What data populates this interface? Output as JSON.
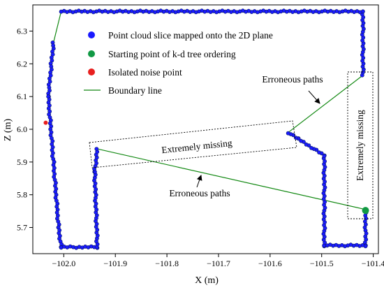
{
  "chart_data": {
    "type": "scatter",
    "xlabel": "X (m)",
    "ylabel": "Z (m)",
    "xlim": [
      -102.06,
      -101.39
    ],
    "ylim": [
      5.62,
      6.38
    ],
    "x_ticks": [
      -102.0,
      -101.9,
      -101.8,
      -101.7,
      -101.6,
      -101.5,
      -101.4
    ],
    "x_tick_labels": [
      "−102.0",
      "−101.9",
      "−101.8",
      "−101.7",
      "−101.6",
      "−101.5",
      "−101.4"
    ],
    "y_ticks": [
      5.7,
      5.8,
      5.9,
      6.0,
      6.1,
      6.2,
      6.3
    ],
    "y_tick_labels": [
      "5.7",
      "5.8",
      "5.9",
      "6.0",
      "6.1",
      "6.2",
      "6.3"
    ],
    "grid": false,
    "legend_position": "top-left",
    "legend": [
      {
        "label": "Point cloud slice mapped onto the 2D plane",
        "marker": "circle",
        "color": "#1a1aff"
      },
      {
        "label": "Starting point of k-d tree ordering",
        "marker": "circle",
        "color": "#119944"
      },
      {
        "label": "Isolated noise point",
        "marker": "circle",
        "color": "#e8201f"
      },
      {
        "label": "Boundary line",
        "marker": "line",
        "color": "#118811"
      }
    ],
    "boundary_polyline": [
      [
        -102.02,
        6.265
      ],
      [
        -102.03,
        6.1
      ],
      [
        -102.02,
        5.9
      ],
      [
        -102.01,
        5.7
      ],
      [
        -102.005,
        5.64
      ],
      [
        -101.935,
        5.64
      ],
      [
        -101.94,
        5.87
      ],
      [
        -101.935,
        5.94
      ],
      [
        -101.415,
        5.755
      ],
      [
        -101.415,
        5.645
      ],
      [
        -101.495,
        5.645
      ],
      [
        -101.495,
        5.92
      ],
      [
        -101.545,
        5.97
      ],
      [
        -101.565,
        5.99
      ],
      [
        -101.42,
        6.165
      ],
      [
        -101.42,
        6.36
      ],
      [
        -102.005,
        6.36
      ],
      [
        -102.02,
        6.265
      ]
    ],
    "start_point": [
      -101.415,
      5.752
    ],
    "noise_point": [
      -102.035,
      6.02
    ],
    "annotations": {
      "box_top_label": "Extremely missing",
      "box_right_label": "Extremely missing",
      "arrow_label_top": "Erroneous paths",
      "arrow_label_bottom": "Erroneous paths"
    }
  }
}
